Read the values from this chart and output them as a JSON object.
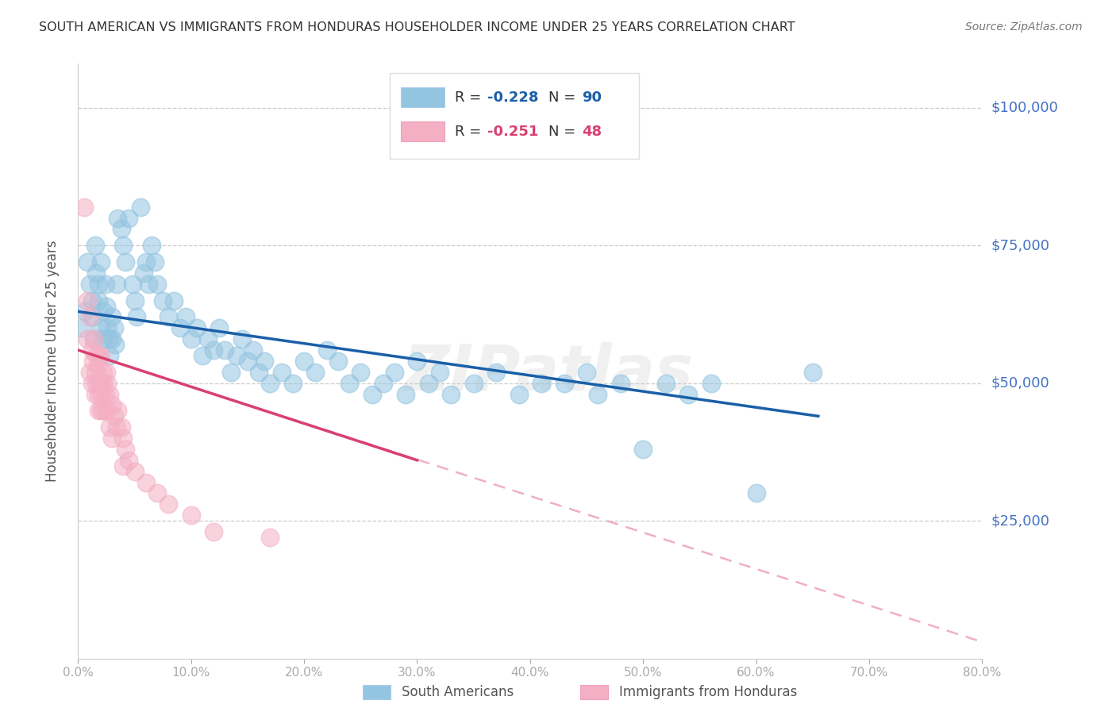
{
  "title": "SOUTH AMERICAN VS IMMIGRANTS FROM HONDURAS HOUSEHOLDER INCOME UNDER 25 YEARS CORRELATION CHART",
  "source": "Source: ZipAtlas.com",
  "ylabel": "Householder Income Under 25 years",
  "xlabel_ticks": [
    "0.0%",
    "10.0%",
    "20.0%",
    "30.0%",
    "40.0%",
    "50.0%",
    "60.0%",
    "70.0%",
    "80.0%"
  ],
  "ytick_labels": [
    "$100,000",
    "$75,000",
    "$50,000",
    "$25,000"
  ],
  "ytick_values": [
    100000,
    75000,
    50000,
    25000
  ],
  "xlim": [
    0,
    0.8
  ],
  "ylim": [
    0,
    108000
  ],
  "watermark": "ZIPatlas",
  "legend_label_blue": "South Americans",
  "legend_label_pink": "Immigrants from Honduras",
  "R_blue": -0.228,
  "N_blue": 90,
  "R_pink": -0.251,
  "N_pink": 48,
  "blue_color": "#93c4e0",
  "pink_color": "#f4afc4",
  "line_blue": "#1a5fa8",
  "line_pink": "#d94070",
  "line_pink_dashed": "#f0b0c0",
  "title_color": "#333333",
  "axis_label_color": "#4472c4",
  "source_color": "#777777",
  "blue_scatter": [
    [
      0.003,
      60000
    ],
    [
      0.006,
      63000
    ],
    [
      0.008,
      72000
    ],
    [
      0.01,
      68000
    ],
    [
      0.012,
      65000
    ],
    [
      0.013,
      62000
    ],
    [
      0.014,
      58000
    ],
    [
      0.015,
      75000
    ],
    [
      0.016,
      70000
    ],
    [
      0.018,
      68000
    ],
    [
      0.018,
      65000
    ],
    [
      0.02,
      72000
    ],
    [
      0.02,
      60000
    ],
    [
      0.022,
      63000
    ],
    [
      0.022,
      58000
    ],
    [
      0.024,
      68000
    ],
    [
      0.025,
      64000
    ],
    [
      0.026,
      60000
    ],
    [
      0.027,
      58000
    ],
    [
      0.028,
      55000
    ],
    [
      0.03,
      62000
    ],
    [
      0.03,
      58000
    ],
    [
      0.032,
      60000
    ],
    [
      0.033,
      57000
    ],
    [
      0.034,
      68000
    ],
    [
      0.035,
      80000
    ],
    [
      0.038,
      78000
    ],
    [
      0.04,
      75000
    ],
    [
      0.042,
      72000
    ],
    [
      0.045,
      80000
    ],
    [
      0.048,
      68000
    ],
    [
      0.05,
      65000
    ],
    [
      0.052,
      62000
    ],
    [
      0.055,
      82000
    ],
    [
      0.058,
      70000
    ],
    [
      0.06,
      72000
    ],
    [
      0.062,
      68000
    ],
    [
      0.065,
      75000
    ],
    [
      0.068,
      72000
    ],
    [
      0.07,
      68000
    ],
    [
      0.075,
      65000
    ],
    [
      0.08,
      62000
    ],
    [
      0.085,
      65000
    ],
    [
      0.09,
      60000
    ],
    [
      0.095,
      62000
    ],
    [
      0.1,
      58000
    ],
    [
      0.105,
      60000
    ],
    [
      0.11,
      55000
    ],
    [
      0.115,
      58000
    ],
    [
      0.12,
      56000
    ],
    [
      0.125,
      60000
    ],
    [
      0.13,
      56000
    ],
    [
      0.135,
      52000
    ],
    [
      0.14,
      55000
    ],
    [
      0.145,
      58000
    ],
    [
      0.15,
      54000
    ],
    [
      0.155,
      56000
    ],
    [
      0.16,
      52000
    ],
    [
      0.165,
      54000
    ],
    [
      0.17,
      50000
    ],
    [
      0.18,
      52000
    ],
    [
      0.19,
      50000
    ],
    [
      0.2,
      54000
    ],
    [
      0.21,
      52000
    ],
    [
      0.22,
      56000
    ],
    [
      0.23,
      54000
    ],
    [
      0.24,
      50000
    ],
    [
      0.25,
      52000
    ],
    [
      0.26,
      48000
    ],
    [
      0.27,
      50000
    ],
    [
      0.28,
      52000
    ],
    [
      0.29,
      48000
    ],
    [
      0.3,
      54000
    ],
    [
      0.31,
      50000
    ],
    [
      0.32,
      52000
    ],
    [
      0.33,
      48000
    ],
    [
      0.35,
      50000
    ],
    [
      0.37,
      52000
    ],
    [
      0.39,
      48000
    ],
    [
      0.41,
      50000
    ],
    [
      0.43,
      50000
    ],
    [
      0.45,
      52000
    ],
    [
      0.46,
      48000
    ],
    [
      0.48,
      50000
    ],
    [
      0.5,
      38000
    ],
    [
      0.52,
      50000
    ],
    [
      0.54,
      48000
    ],
    [
      0.56,
      50000
    ],
    [
      0.6,
      30000
    ],
    [
      0.65,
      52000
    ]
  ],
  "pink_scatter": [
    [
      0.005,
      82000
    ],
    [
      0.008,
      65000
    ],
    [
      0.008,
      58000
    ],
    [
      0.01,
      62000
    ],
    [
      0.01,
      52000
    ],
    [
      0.012,
      56000
    ],
    [
      0.012,
      50000
    ],
    [
      0.013,
      54000
    ],
    [
      0.014,
      58000
    ],
    [
      0.015,
      52000
    ],
    [
      0.015,
      48000
    ],
    [
      0.016,
      55000
    ],
    [
      0.016,
      50000
    ],
    [
      0.017,
      53000
    ],
    [
      0.018,
      55000
    ],
    [
      0.018,
      48000
    ],
    [
      0.018,
      45000
    ],
    [
      0.019,
      50000
    ],
    [
      0.02,
      55000
    ],
    [
      0.02,
      50000
    ],
    [
      0.02,
      45000
    ],
    [
      0.021,
      48000
    ],
    [
      0.022,
      52000
    ],
    [
      0.022,
      45000
    ],
    [
      0.023,
      50000
    ],
    [
      0.024,
      48000
    ],
    [
      0.025,
      52000
    ],
    [
      0.025,
      45000
    ],
    [
      0.026,
      50000
    ],
    [
      0.028,
      48000
    ],
    [
      0.028,
      42000
    ],
    [
      0.03,
      46000
    ],
    [
      0.03,
      40000
    ],
    [
      0.032,
      44000
    ],
    [
      0.034,
      42000
    ],
    [
      0.035,
      45000
    ],
    [
      0.038,
      42000
    ],
    [
      0.04,
      40000
    ],
    [
      0.04,
      35000
    ],
    [
      0.042,
      38000
    ],
    [
      0.045,
      36000
    ],
    [
      0.05,
      34000
    ],
    [
      0.06,
      32000
    ],
    [
      0.07,
      30000
    ],
    [
      0.08,
      28000
    ],
    [
      0.1,
      26000
    ],
    [
      0.12,
      23000
    ],
    [
      0.17,
      22000
    ]
  ],
  "blue_line_x": [
    0.0,
    0.655
  ],
  "blue_line_y": [
    63000,
    44000
  ],
  "pink_solid_line_x": [
    0.0,
    0.3
  ],
  "pink_solid_line_y": [
    56000,
    36000
  ],
  "pink_dashed_line_x": [
    0.0,
    0.8
  ],
  "pink_dashed_line_y": [
    56000,
    3000
  ],
  "grid_color": "#cccccc",
  "spine_color": "#cccccc"
}
